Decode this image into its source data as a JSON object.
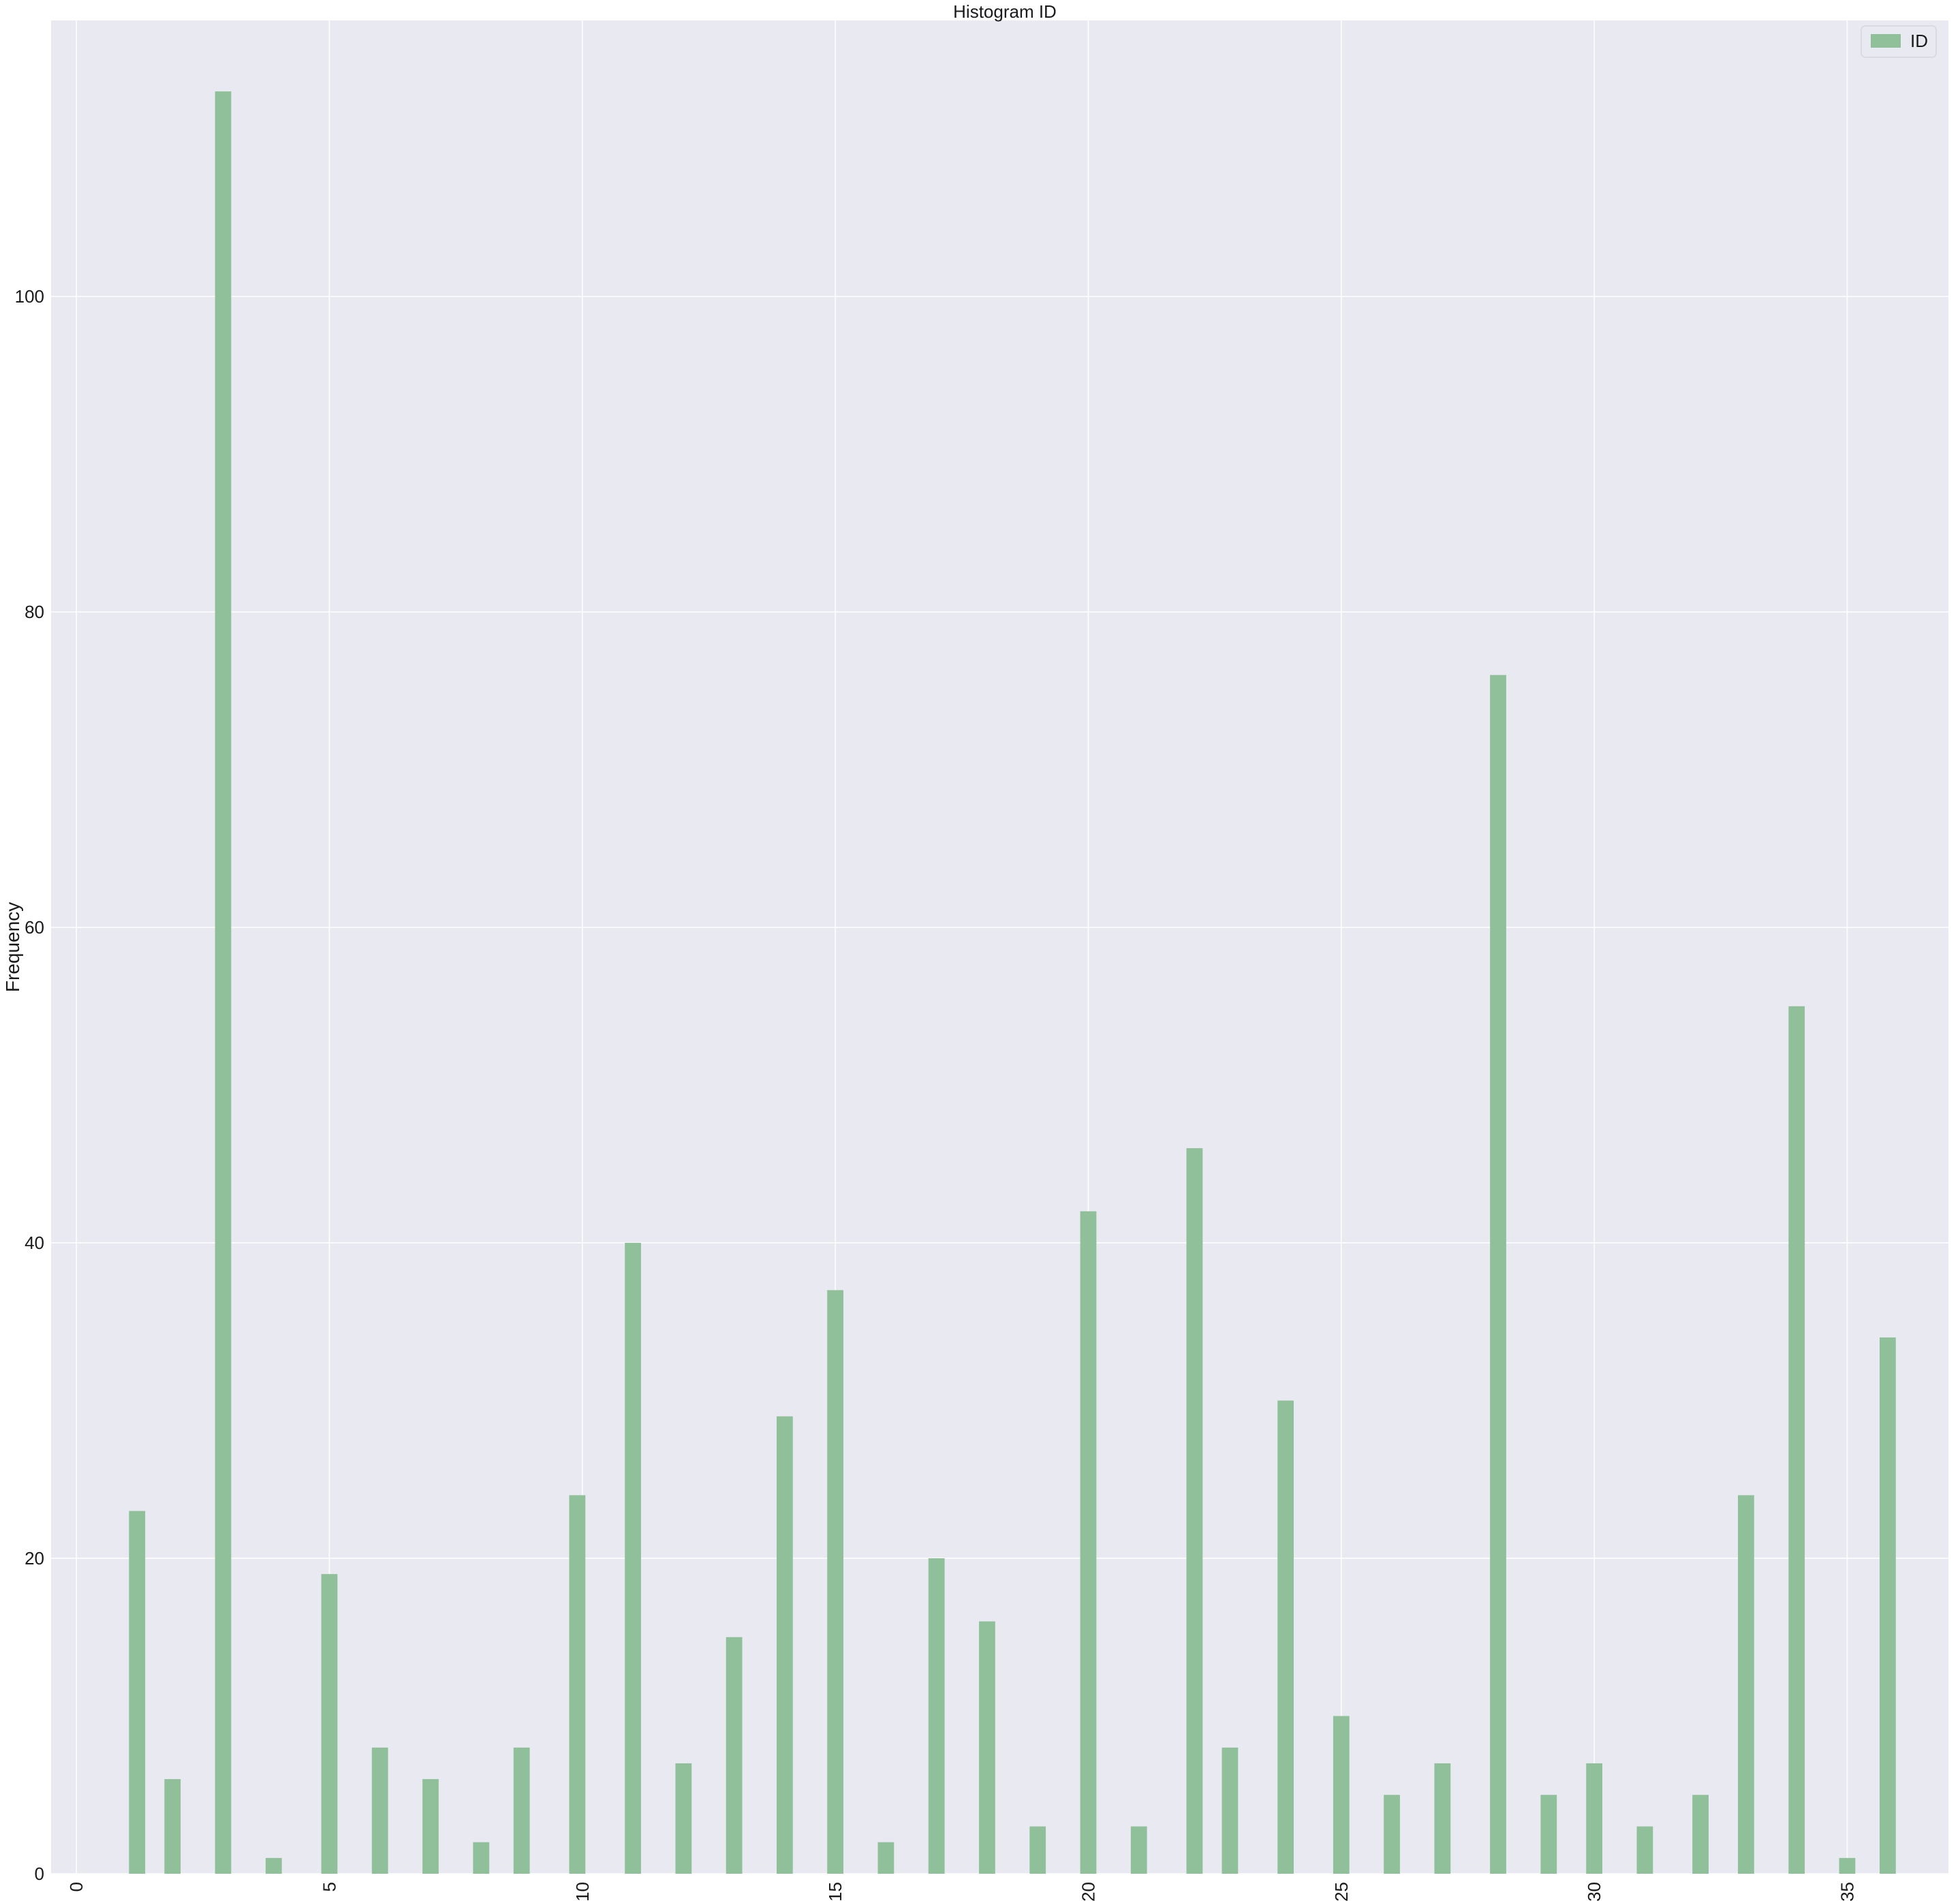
{
  "chart_data": {
    "type": "bar",
    "title": "Histogram ID",
    "xlabel": "",
    "ylabel": "Frequency",
    "legend": {
      "entries": [
        "ID"
      ],
      "placement": "top-right"
    },
    "grid": true,
    "xlim": [
      -0.5,
      37.0
    ],
    "ylim": [
      0,
      117.5
    ],
    "xticks": [
      0,
      5,
      10,
      15,
      20,
      25,
      30,
      35
    ],
    "yticks": [
      0,
      20,
      40,
      60,
      80,
      100
    ],
    "xtick_rotation": 90,
    "bar_color": "#8fc09a",
    "background_color": "#e9e9f1",
    "grid_color": "#ffffff",
    "series": [
      {
        "name": "ID",
        "x": [
          1.2,
          1.9,
          2.9,
          3.9,
          5.0,
          6.0,
          7.0,
          8.0,
          8.8,
          9.9,
          11.0,
          12.0,
          13.0,
          14.0,
          15.0,
          16.0,
          17.0,
          18.0,
          19.0,
          20.0,
          21.0,
          22.1,
          22.8,
          23.9,
          25.0,
          26.0,
          27.0,
          28.1,
          29.1,
          30.0,
          31.0,
          32.1,
          33.0,
          34.0,
          35.0,
          35.8
        ],
        "values": [
          23,
          6,
          113,
          1,
          19,
          8,
          6,
          2,
          8,
          24,
          40,
          7,
          15,
          29,
          37,
          2,
          20,
          16,
          3,
          42,
          3,
          46,
          8,
          30,
          10,
          5,
          7,
          76,
          5,
          7,
          3,
          5,
          24,
          55,
          1,
          34
        ]
      }
    ]
  }
}
